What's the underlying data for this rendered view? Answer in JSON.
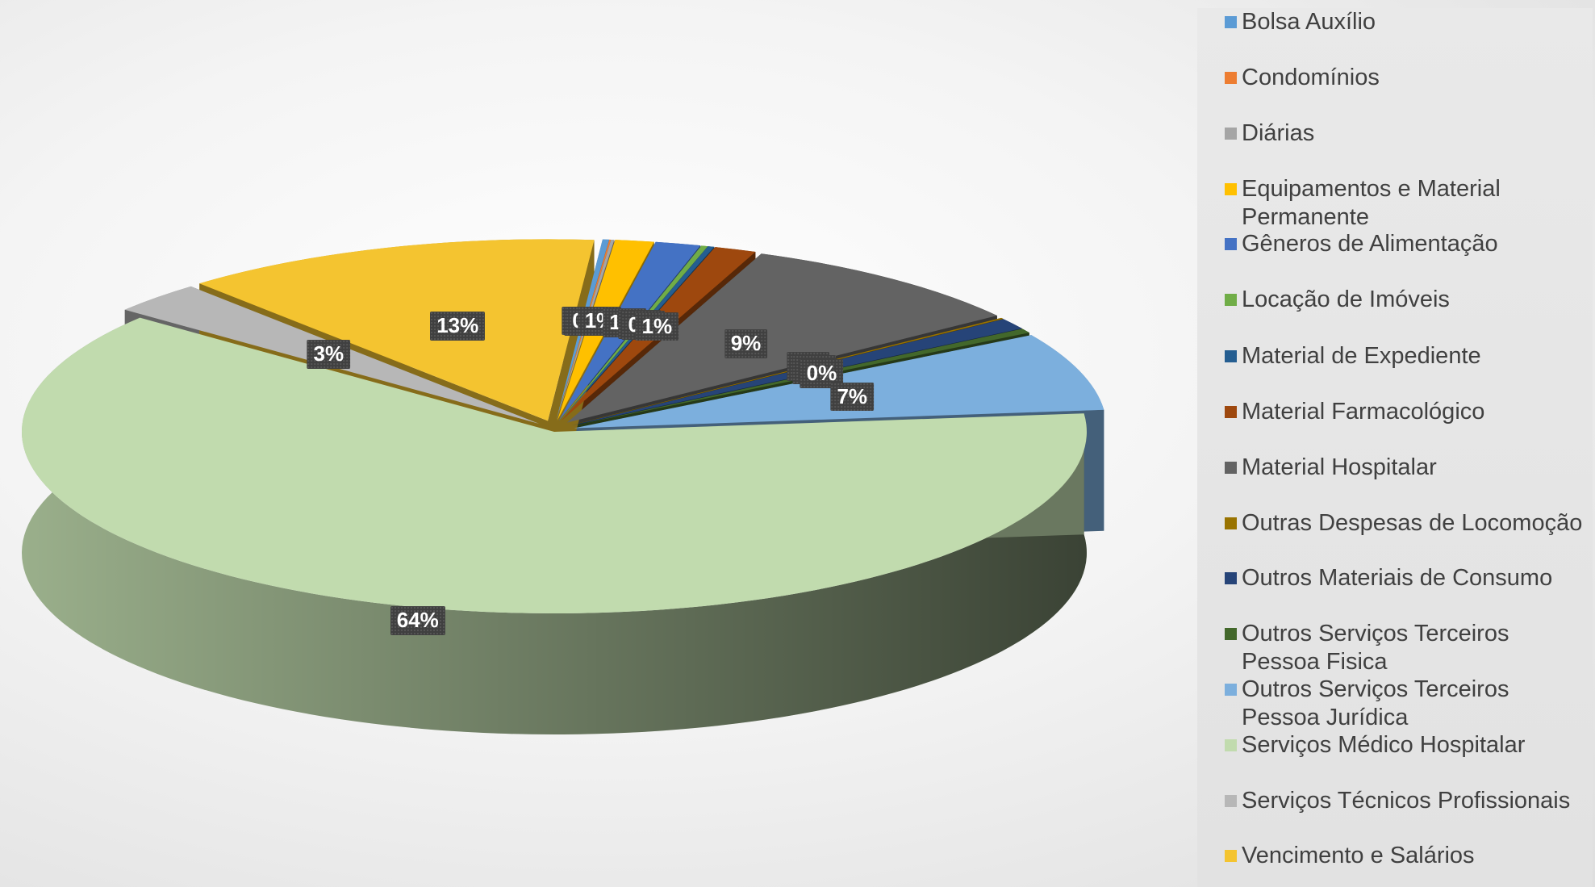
{
  "chart_data": {
    "type": "pie",
    "title": "",
    "legend_position": "right",
    "categories": [
      "Bolsa Auxílio",
      "Condomínios",
      "Diárias",
      "Equipamentos e Material Permanente",
      "Gêneros de Alimentação",
      "Locação de Imóveis",
      "Material de Expediente",
      "Material Farmacológico",
      "Material Hospitalar",
      "Outras Despesas de Locomoção",
      "Outros Materiais de Consumo",
      "Outros Serviços Terceiros Pessoa Fisica",
      "Outros Serviços Terceiros Pessoa Jurídica",
      "Serviços Médico Hospitalar",
      "Serviços Técnicos Profissionais",
      "Vencimento e Salários"
    ],
    "values": [
      0.2,
      0.05,
      0.1,
      1.2,
      1.4,
      0.2,
      0.2,
      1.3,
      9.2,
      0.1,
      1.0,
      0.4,
      7.1,
      63.7,
      2.9,
      13.0
    ],
    "data_labels": [
      "0%",
      "0%",
      "0%",
      "1%",
      "1%",
      "0%",
      "0%",
      "1%",
      "9%",
      "0%",
      "1%",
      "0%",
      "7%",
      "64%",
      "3%",
      "13%"
    ],
    "colors": [
      "#5B9BD5",
      "#ED7D31",
      "#A5A5A5",
      "#FFC000",
      "#4472C4",
      "#70AD47",
      "#255E91",
      "#9E480E",
      "#636363",
      "#997300",
      "#264478",
      "#43682B",
      "#7CAFDD",
      "#C1DBAE",
      "#B7B7B7",
      "#F4C430"
    ]
  }
}
